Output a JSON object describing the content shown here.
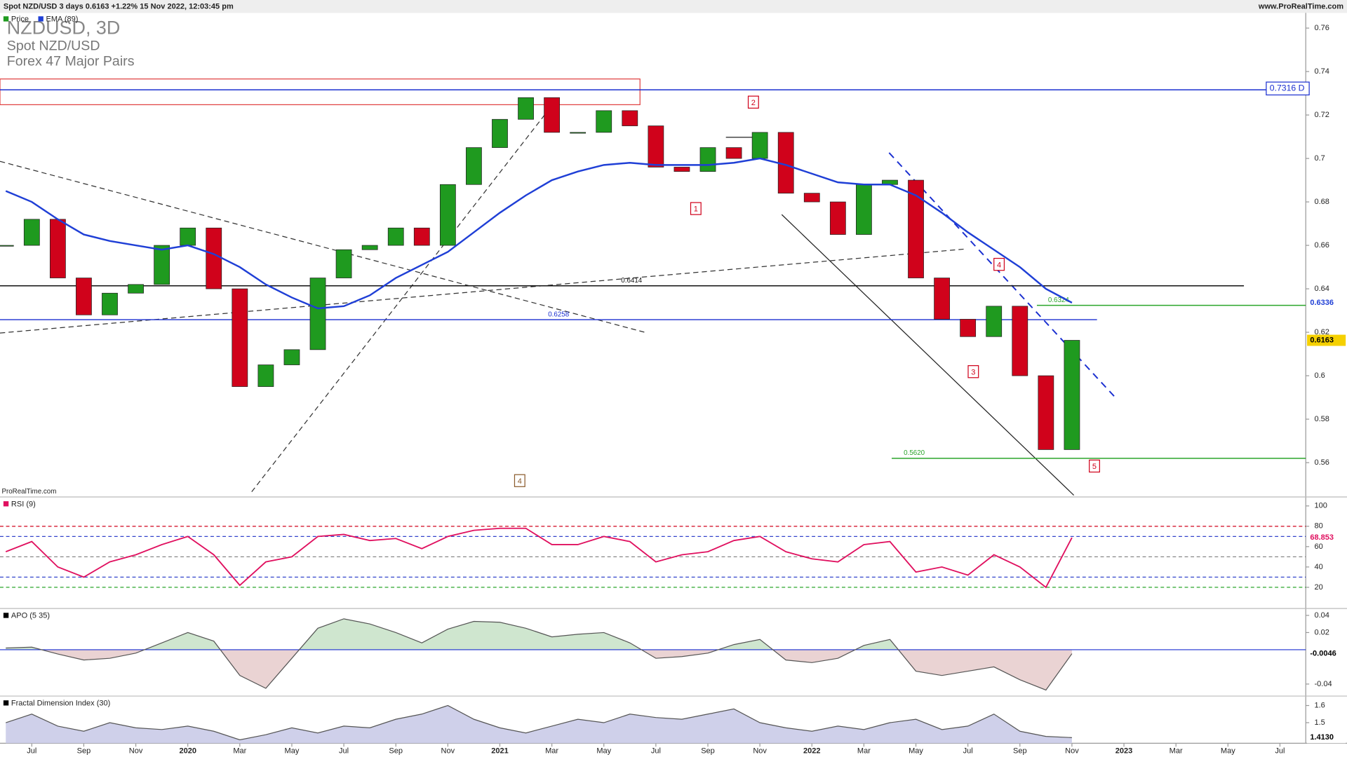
{
  "header": {
    "instrument_line": "Spot NZD/USD 3 days 0.6163 +1.22% 15 Nov 2022, 12:03:45 pm",
    "site": "www.ProRealTime.com",
    "watermark": "ProRealTime.com"
  },
  "x_axis": {
    "labels": [
      "Jul",
      "Sep",
      "Nov",
      "2020",
      "Mar",
      "May",
      "Jul",
      "Sep",
      "Nov",
      "2021",
      "Mar",
      "May",
      "Jul",
      "Sep",
      "Nov",
      "2022",
      "Mar",
      "May",
      "Jul",
      "Sep",
      "Nov",
      "2023",
      "Mar",
      "May",
      "Jul"
    ]
  },
  "annotations": [
    "1",
    "2",
    "3",
    "4",
    "5",
    "4"
  ],
  "chart_data": [
    {
      "type": "candlestick",
      "title": "NZDUSD, 3D",
      "subtitle": "Spot NZD/USD",
      "description": "Forex 47 Major Pairs",
      "ylim": [
        0.545,
        0.767
      ],
      "yticks": [
        0.56,
        0.58,
        0.6,
        0.62,
        0.64,
        0.66,
        0.68,
        0.7,
        0.72,
        0.74,
        0.76
      ],
      "series": [
        {
          "name": "Price",
          "up_color": "#1f9a1f",
          "down_color": "#d0021b",
          "last_color": "#f5d000",
          "last_value_label": "0.6163",
          "values": [
            0.66,
            0.672,
            0.645,
            0.628,
            0.638,
            0.642,
            0.66,
            0.668,
            0.64,
            0.595,
            0.605,
            0.612,
            0.645,
            0.658,
            0.66,
            0.668,
            0.66,
            0.688,
            0.705,
            0.718,
            0.728,
            0.712,
            0.712,
            0.722,
            0.715,
            0.696,
            0.694,
            0.705,
            0.7,
            0.712,
            0.684,
            0.68,
            0.665,
            0.688,
            0.69,
            0.645,
            0.626,
            0.618,
            0.632,
            0.6,
            0.566,
            0.6163
          ]
        },
        {
          "name": "EMA (89)",
          "color": "#1f3fd6",
          "last_value_label": "0.6336",
          "values": [
            0.685,
            0.68,
            0.672,
            0.665,
            0.662,
            0.66,
            0.658,
            0.66,
            0.656,
            0.65,
            0.642,
            0.636,
            0.631,
            0.632,
            0.637,
            0.645,
            0.651,
            0.657,
            0.666,
            0.675,
            0.683,
            0.69,
            0.694,
            0.697,
            0.698,
            0.697,
            0.697,
            0.697,
            0.698,
            0.7,
            0.697,
            0.693,
            0.689,
            0.688,
            0.688,
            0.683,
            0.675,
            0.666,
            0.658,
            0.65,
            0.64,
            0.6336
          ]
        }
      ],
      "levels": [
        {
          "value": 0.7316,
          "label": "0.7316 D",
          "color": "#1a2fd0"
        },
        {
          "value": 0.6414,
          "label": "0.6414",
          "color": "#111111"
        },
        {
          "value": 0.6258,
          "label": "0.6258",
          "color": "#1a2fd0"
        },
        {
          "value": 0.6324,
          "label": "0.6324",
          "color": "#2aa52a"
        },
        {
          "value": 0.562,
          "label": "0.5620",
          "color": "#2aa52a"
        }
      ]
    },
    {
      "type": "line",
      "title": "RSI (9)",
      "color": "#e0105f",
      "last_value_label": "68.853",
      "ylim": [
        0,
        108
      ],
      "yticks": [
        20,
        40,
        60,
        80,
        100
      ],
      "levels": [
        {
          "value": 80,
          "color": "#d0021b"
        },
        {
          "value": 70,
          "color": "#3344cc"
        },
        {
          "value": 50,
          "color": "#888888"
        },
        {
          "value": 30,
          "color": "#3344cc"
        },
        {
          "value": 20,
          "color": "#2aa52a"
        }
      ],
      "values": [
        55,
        65,
        40,
        30,
        45,
        52,
        62,
        70,
        52,
        22,
        45,
        50,
        70,
        72,
        66,
        68,
        58,
        70,
        76,
        78,
        78,
        62,
        62,
        70,
        65,
        45,
        52,
        55,
        66,
        70,
        55,
        48,
        45,
        62,
        65,
        35,
        40,
        32,
        52,
        40,
        20,
        68.853
      ]
    },
    {
      "type": "area",
      "title": "APO (5 35)",
      "line_color": "#555555",
      "positive_color": "#cfe6cf",
      "negative_color": "#ead3d3",
      "zero_line_color": "#1a2fd0",
      "last_value_label": "-0.0046",
      "ylim": [
        -0.051,
        0.047
      ],
      "yticks": [
        -0.04,
        0.02,
        0.04
      ],
      "values": [
        0.002,
        0.003,
        -0.005,
        -0.012,
        -0.01,
        -0.004,
        0.008,
        0.02,
        0.01,
        -0.03,
        -0.045,
        -0.01,
        0.025,
        0.036,
        0.03,
        0.02,
        0.008,
        0.024,
        0.033,
        0.032,
        0.025,
        0.015,
        0.018,
        0.02,
        0.008,
        -0.01,
        -0.008,
        -0.004,
        0.006,
        0.012,
        -0.012,
        -0.015,
        -0.01,
        0.005,
        0.012,
        -0.025,
        -0.03,
        -0.025,
        -0.02,
        -0.035,
        -0.047,
        -0.0046
      ]
    },
    {
      "type": "area",
      "title": "Fractal Dimension Index (30)",
      "line_color": "#555555",
      "positive_color": "#cfd0ea",
      "last_value_label": "1.4130",
      "ylim": [
        1.38,
        1.65
      ],
      "yticks": [
        1.5,
        1.6
      ],
      "values": [
        1.5,
        1.55,
        1.48,
        1.45,
        1.5,
        1.47,
        1.46,
        1.48,
        1.45,
        1.4,
        1.43,
        1.47,
        1.44,
        1.48,
        1.47,
        1.52,
        1.55,
        1.6,
        1.52,
        1.47,
        1.44,
        1.48,
        1.52,
        1.5,
        1.55,
        1.53,
        1.52,
        1.55,
        1.58,
        1.5,
        1.47,
        1.45,
        1.48,
        1.46,
        1.5,
        1.52,
        1.46,
        1.48,
        1.55,
        1.45,
        1.42,
        1.413
      ]
    }
  ]
}
